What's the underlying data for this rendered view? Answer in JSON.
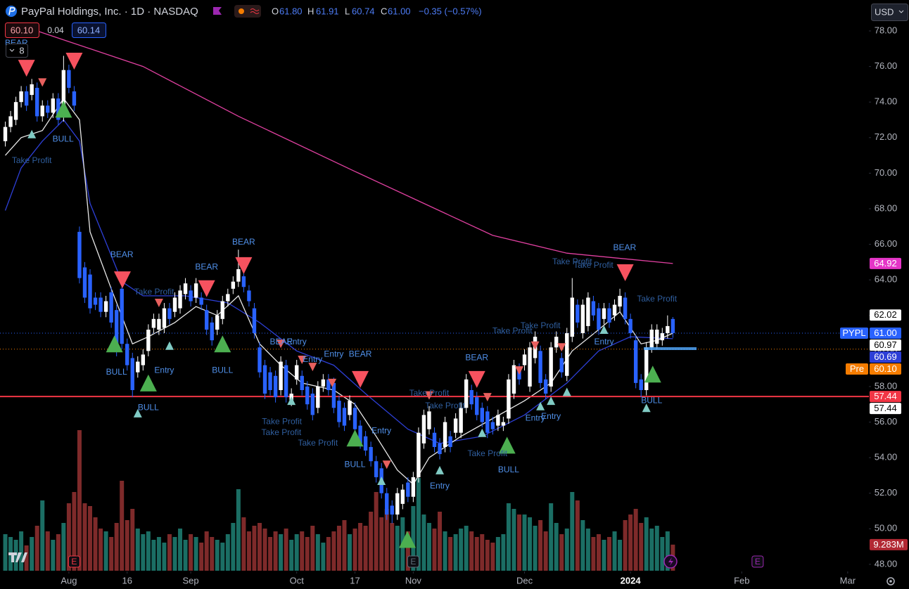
{
  "header": {
    "title": "PayPal Holdings, Inc. · 1D · NASDAQ",
    "ohlc": [
      {
        "key": "O",
        "value": "61.80"
      },
      {
        "key": "H",
        "value": "61.91"
      },
      {
        "key": "L",
        "value": "60.74"
      },
      {
        "key": "C",
        "value": "61.00"
      }
    ],
    "change": "−0.35 (−0.57%)",
    "bid": "60.10",
    "spread": "0.04",
    "ask": "60.14",
    "indicators": "8",
    "currency": "USD"
  },
  "chart_data": {
    "type": "candlestick",
    "xlim": [
      -1,
      163
    ],
    "ylim": [
      47.64,
      79.74
    ],
    "xticks": [
      {
        "value": 12,
        "label": "Aug"
      },
      {
        "value": 23,
        "label": "16"
      },
      {
        "value": 35,
        "label": "Sep"
      },
      {
        "value": 55,
        "label": "Oct"
      },
      {
        "value": 66,
        "label": "17"
      },
      {
        "value": 77,
        "label": "Nov"
      },
      {
        "value": 98,
        "label": "Dec"
      },
      {
        "value": 118,
        "label": "2024",
        "bold": true
      },
      {
        "value": 139,
        "label": "Feb"
      },
      {
        "value": 159,
        "label": "Mar"
      }
    ],
    "yticks": [
      {
        "value": 48,
        "label": "48.00"
      },
      {
        "value": 50,
        "label": "50.00"
      },
      {
        "value": 52,
        "label": "52.00"
      },
      {
        "value": 54,
        "label": "54.00"
      },
      {
        "value": 56,
        "label": "56.00"
      },
      {
        "value": 58,
        "label": "58.00"
      },
      {
        "value": 60,
        "label": "60.00"
      },
      {
        "value": 62,
        "label": "62.00"
      },
      {
        "value": 64,
        "label": "64.00"
      },
      {
        "value": 66,
        "label": "66.00"
      },
      {
        "value": 68,
        "label": "68.00"
      },
      {
        "value": 70,
        "label": "70.00"
      },
      {
        "value": 72,
        "label": "72.00"
      },
      {
        "value": 74,
        "label": "74.00"
      },
      {
        "value": 76,
        "label": "76.00"
      },
      {
        "value": 78,
        "label": "78.00"
      }
    ],
    "up_color": "#ffffff",
    "down_color": "#2962ff",
    "volume_up_color": "#1e7a6f",
    "volume_down_color": "#8c2f2f",
    "open": [
      71.8,
      72.6,
      73.0,
      74.0,
      74.6,
      74.4,
      74.8,
      73.2,
      73.8,
      73.4,
      74.2,
      73.2,
      75.8,
      74.6,
      66.7,
      64.7,
      64.3,
      63.0,
      63.0,
      62.2,
      63.3,
      62.3,
      63.5,
      60.4,
      59.6,
      58.8,
      59.2,
      60.0,
      61.3,
      61.2,
      61.3,
      62.4,
      62.2,
      62.4,
      63.2,
      63.4,
      63.0,
      63.0,
      62.3,
      61.6,
      61.2,
      61.8,
      62.8,
      63.5,
      63.9,
      64.2,
      63.4,
      62.4,
      60.2,
      59.2,
      58.8,
      58.6,
      57.8,
      59.2,
      57.2,
      58.4,
      58.6,
      58.0,
      57.6,
      56.8,
      58.0,
      58.4,
      58.2,
      57.2,
      56.8,
      56.4,
      56.8,
      55.8,
      55.2,
      54.6,
      53.8,
      53.4,
      52.0,
      51.3,
      50.8,
      51.4,
      52.6,
      51.8,
      52.9,
      54.8,
      55.6,
      55.4,
      54.8,
      54.6,
      55.2,
      55.4,
      55.4,
      56.8,
      57.8,
      57.4,
      56.8,
      56.6,
      56.0,
      55.8,
      55.8,
      56.2,
      57.6,
      59.0,
      59.2,
      58.0,
      59.6,
      60.0,
      58.4,
      58.0,
      60.2,
      59.6,
      58.6,
      60.8,
      62.6,
      61.0,
      61.4,
      62.8,
      62.4,
      61.8,
      62.4,
      62.0,
      62.5,
      63.0,
      61.8,
      60.6,
      58.4,
      57.8,
      60.2,
      60.4,
      60.6,
      61.0,
      61.8
    ],
    "high": [
      72.9,
      73.5,
      74.3,
      74.9,
      74.9,
      75.3,
      75.1,
      74.1,
      74.1,
      74.5,
      74.5,
      76.6,
      76.1,
      74.9,
      67.0,
      65.0,
      64.6,
      63.3,
      63.3,
      63.1,
      63.6,
      62.6,
      63.8,
      60.7,
      59.9,
      59.7,
      60.1,
      61.5,
      62.1,
      62.1,
      62.7,
      62.7,
      63.3,
      63.7,
      64.1,
      63.7,
      64.1,
      63.3,
      62.6,
      61.9,
      62.3,
      63.1,
      63.5,
      64.2,
      65.7,
      64.5,
      63.7,
      62.7,
      60.5,
      59.5,
      59.1,
      58.9,
      59.7,
      59.5,
      57.9,
      59.5,
      58.9,
      58.3,
      57.9,
      58.3,
      58.7,
      58.7,
      58.5,
      57.5,
      57.1,
      57.5,
      57.1,
      56.1,
      55.5,
      54.9,
      54.1,
      53.7,
      52.3,
      51.6,
      52.3,
      52.5,
      52.9,
      53.2,
      55.7,
      56.7,
      56.9,
      55.7,
      55.1,
      56.3,
      55.5,
      56.5,
      57.1,
      58.7,
      58.1,
      57.7,
      57.1,
      56.9,
      56.3,
      56.7,
      56.3,
      58.7,
      59.5,
      59.3,
      60.1,
      60.5,
      61.1,
      60.3,
      58.7,
      60.5,
      61.1,
      59.9,
      61.3,
      64.1,
      62.9,
      62.9,
      63.3,
      63.1,
      62.7,
      62.7,
      62.7,
      62.9,
      63.5,
      63.3,
      62.1,
      60.9,
      58.7,
      60.5,
      61.5,
      61.5,
      61.3,
      62.0,
      61.91
    ],
    "low": [
      71.5,
      72.3,
      72.7,
      73.7,
      73.5,
      74.1,
      72.9,
      72.9,
      73.1,
      73.1,
      72.7,
      72.9,
      74.5,
      73.5,
      63.8,
      62.7,
      62.1,
      62.3,
      61.9,
      61.9,
      61.3,
      59.7,
      60.1,
      58.9,
      57.4,
      58.5,
      58.9,
      59.7,
      61.0,
      60.9,
      61.0,
      61.5,
      61.9,
      62.1,
      62.9,
      62.5,
      62.7,
      62.3,
      60.9,
      60.3,
      60.9,
      61.5,
      62.5,
      63.2,
      63.6,
      63.3,
      62.5,
      60.7,
      58.5,
      57.3,
      57.5,
      57.1,
      57.5,
      57.1,
      56.9,
      58.1,
      57.5,
      56.7,
      56.1,
      56.5,
      57.7,
      57.5,
      56.5,
      55.7,
      55.5,
      56.1,
      55.3,
      54.5,
      54.1,
      53.5,
      52.6,
      51.7,
      50.5,
      50.3,
      50.5,
      51.1,
      51.5,
      51.5,
      52.6,
      54.5,
      55.3,
      54.3,
      53.9,
      54.3,
      54.3,
      55.1,
      55.1,
      56.5,
      56.7,
      56.1,
      55.7,
      55.1,
      55.3,
      55.5,
      55.5,
      55.9,
      57.3,
      58.1,
      58.9,
      57.7,
      59.3,
      57.9,
      57.3,
      57.7,
      59.9,
      58.5,
      58.3,
      60.5,
      61.3,
      60.7,
      61.1,
      61.7,
      60.9,
      61.5,
      61.3,
      61.7,
      62.2,
      61.5,
      60.7,
      57.9,
      57.4,
      57.5,
      59.9,
      60.1,
      60.3,
      60.7,
      60.74
    ],
    "close": [
      72.6,
      73.2,
      74.0,
      74.6,
      73.8,
      75.0,
      73.2,
      73.8,
      73.4,
      74.2,
      73.0,
      75.8,
      74.8,
      73.8,
      64.1,
      63.0,
      62.4,
      62.6,
      62.2,
      62.8,
      61.6,
      60.0,
      60.4,
      59.2,
      57.8,
      59.4,
      59.8,
      61.2,
      61.8,
      61.8,
      62.4,
      61.8,
      63.0,
      63.4,
      63.8,
      62.8,
      63.8,
      62.6,
      61.2,
      60.6,
      62.0,
      62.8,
      63.2,
      63.9,
      64.6,
      63.6,
      62.8,
      61.0,
      58.8,
      57.6,
      57.8,
      57.4,
      59.4,
      57.4,
      57.6,
      59.2,
      57.8,
      57.0,
      56.4,
      58.0,
      58.4,
      57.8,
      56.8,
      56.0,
      55.8,
      57.2,
      55.6,
      54.8,
      54.4,
      53.8,
      52.9,
      52.0,
      50.8,
      50.8,
      52.0,
      52.2,
      51.8,
      52.9,
      55.4,
      56.4,
      56.6,
      54.6,
      54.2,
      56.0,
      54.6,
      56.2,
      56.8,
      58.4,
      57.0,
      56.4,
      56.0,
      55.4,
      55.6,
      56.4,
      56.0,
      58.4,
      59.2,
      58.4,
      59.8,
      60.2,
      60.8,
      58.2,
      57.6,
      60.2,
      60.8,
      58.8,
      61.0,
      63.0,
      61.6,
      62.6,
      63.0,
      62.0,
      61.2,
      62.4,
      61.6,
      62.6,
      63.1,
      61.8,
      61.0,
      58.2,
      57.8,
      60.2,
      61.2,
      61.2,
      61.0,
      61.4,
      61.0
    ],
    "volume": [
      13,
      12,
      11,
      14,
      9,
      12,
      16,
      25,
      14,
      11,
      13,
      17,
      24,
      28,
      50,
      24,
      23,
      19,
      15,
      14,
      12,
      17,
      32,
      18,
      22,
      15,
      13,
      14,
      11,
      12,
      10,
      13,
      12,
      15,
      11,
      13,
      12,
      10,
      14,
      12,
      11,
      10,
      13,
      17,
      29,
      19,
      14,
      16,
      17,
      15,
      12,
      14,
      13,
      15,
      11,
      13,
      14,
      12,
      16,
      13,
      10,
      12,
      14,
      16,
      18,
      13,
      15,
      17,
      16,
      21,
      28,
      19,
      22,
      17,
      16,
      19,
      14,
      23,
      33,
      20,
      17,
      15,
      21,
      14,
      12,
      13,
      15,
      16,
      14,
      12,
      13,
      11,
      10,
      12,
      13,
      24,
      22,
      20,
      20,
      19,
      16,
      18,
      14,
      24,
      17,
      13,
      15,
      28,
      25,
      18,
      15,
      12,
      13,
      11,
      12,
      14,
      11,
      18,
      20,
      22,
      17,
      19,
      15,
      16,
      12,
      14,
      9.283
    ],
    "volume_label": {
      "value": 9.283,
      "label": "9.283M",
      "color": "#b22833"
    },
    "lines": [
      {
        "color": "#e040a0",
        "x": [
          6,
          12,
          26,
          44,
          66,
          79,
          92,
          106,
          126
        ],
        "values": [
          78.0,
          77.4,
          76.0,
          73.2,
          70.1,
          68.3,
          66.5,
          65.5,
          64.92
        ]
      },
      {
        "color": "#2d3fd6",
        "x": [
          0,
          3,
          7,
          11,
          14,
          16,
          22,
          26,
          34,
          42,
          48,
          55,
          62,
          68,
          76,
          82,
          90,
          98,
          106,
          112,
          118,
          126
        ],
        "values": [
          67.9,
          70.3,
          71.8,
          73.0,
          71.8,
          68.3,
          63.9,
          63.1,
          63.1,
          62.7,
          61.6,
          60.0,
          59.2,
          57.6,
          55.6,
          54.8,
          55.2,
          56.4,
          58.2,
          60.0,
          60.8,
          60.69
        ]
      },
      {
        "color": "#e8e8e8",
        "x": [
          0,
          3,
          7,
          11,
          14,
          16,
          20,
          24,
          27,
          32,
          36,
          40,
          44,
          48,
          52,
          56,
          62,
          66,
          70,
          74,
          77,
          80,
          86,
          92,
          98,
          103,
          107,
          112,
          116,
          120,
          123,
          126
        ],
        "values": [
          71.0,
          72.0,
          72.4,
          74.2,
          73.0,
          66.7,
          63.5,
          60.4,
          60.8,
          61.6,
          62.5,
          62.0,
          63.1,
          60.4,
          59.2,
          58.2,
          57.8,
          57.0,
          55.2,
          53.3,
          52.5,
          54.0,
          55.2,
          56.2,
          57.2,
          58.2,
          60.0,
          61.2,
          62.2,
          60.4,
          60.6,
          61.0
        ]
      }
    ],
    "price_lines": [
      {
        "value": 57.44,
        "color": "#f23645",
        "style": "solid"
      },
      {
        "value": 61.0,
        "color": "#2962ff",
        "style": "dotted"
      },
      {
        "value": 60.1,
        "color": "#f57c00",
        "style": "dotted"
      }
    ],
    "price_labels": [
      {
        "value": 64.92,
        "label": "64.92",
        "bg": "#e535c7",
        "fg": "#ffffff"
      },
      {
        "value": 62.02,
        "label": "62.02",
        "bg": "#ffffff",
        "fg": "#000000"
      },
      {
        "value": 61.0,
        "label": "61.00",
        "prefix": "PYPL",
        "bg": "#2962ff",
        "fg": "#ffffff"
      },
      {
        "value": 60.97,
        "label": "60.97",
        "bg": "#ffffff",
        "fg": "#000000"
      },
      {
        "value": 60.69,
        "label": "60.69",
        "bg": "#2d3fd6",
        "fg": "#ffffff"
      },
      {
        "value": 60.1,
        "label": "60.10",
        "prefix": "Pre",
        "bg": "#f57c00",
        "fg": "#ffffff"
      },
      {
        "value": 57.44,
        "label": "57.44",
        "bg": "#f23645",
        "fg": "#ffffff"
      },
      {
        "value": 57.44,
        "label": "57.44",
        "bg": "#ffffff",
        "fg": "#000000"
      }
    ],
    "markers": [
      {
        "color": "#f7525f",
        "direction": "down",
        "points": [
          [
            4,
            75.9
          ],
          [
            13,
            76.3
          ],
          [
            22.1,
            64.0
          ],
          [
            38,
            63.5
          ],
          [
            45,
            64.8
          ],
          [
            67,
            58.4
          ],
          [
            89,
            58.4
          ],
          [
            117,
            64.4
          ]
        ]
      },
      {
        "color": "#4caf50",
        "direction": "up",
        "points": [
          [
            11,
            73.6
          ],
          [
            20.6,
            60.4
          ],
          [
            27,
            58.2
          ],
          [
            41,
            60.4
          ],
          [
            66,
            55.1
          ],
          [
            94.7,
            54.7
          ],
          [
            122.2,
            58.7
          ],
          [
            75.9,
            49.4
          ]
        ]
      },
      {
        "color": "#e8605e",
        "direction": "down",
        "points": [
          [
            7,
            75.1
          ],
          [
            29,
            62.7
          ],
          [
            52,
            60.4
          ],
          [
            56,
            59.5
          ],
          [
            72,
            53.6
          ],
          [
            80,
            57.5
          ],
          [
            91,
            57.4
          ],
          [
            97,
            58.9
          ],
          [
            100,
            60.3
          ],
          [
            105,
            60.2
          ],
          [
            58,
            59.1
          ],
          [
            61.7,
            58.2
          ]
        ]
      },
      {
        "color": "#80cbc4",
        "direction": "up",
        "points": [
          [
            5,
            72.2
          ],
          [
            25,
            56.5
          ],
          [
            31,
            60.3
          ],
          [
            54,
            57.2
          ],
          [
            71,
            52.7
          ],
          [
            82,
            53.3
          ],
          [
            90,
            55.4
          ],
          [
            101,
            56.9
          ],
          [
            103,
            57.2
          ],
          [
            113,
            61.2
          ],
          [
            121,
            56.8
          ],
          [
            106,
            57.7
          ]
        ]
      }
    ],
    "annotations": [
      {
        "text": "BEAR",
        "color": "#4f8fe8",
        "points": [
          [
            2.1,
            77.3
          ],
          [
            22,
            65.4
          ],
          [
            38,
            64.7
          ],
          [
            45,
            66.1
          ],
          [
            52.1,
            60.5
          ],
          [
            67,
            59.8
          ],
          [
            89,
            59.6
          ],
          [
            116.9,
            65.8
          ]
        ]
      },
      {
        "text": "BULL",
        "color": "#4f8fe8",
        "points": [
          [
            10.9,
            71.9
          ],
          [
            21,
            58.8
          ],
          [
            27,
            56.8
          ],
          [
            41,
            58.9
          ],
          [
            66,
            53.6
          ],
          [
            95,
            53.3
          ],
          [
            122,
            57.2
          ]
        ]
      },
      {
        "text": "Take Profit",
        "color": "#2f5e9e",
        "points": [
          [
            5,
            70.7
          ],
          [
            28.1,
            63.3
          ],
          [
            52.2,
            56.0
          ],
          [
            52.1,
            55.4
          ],
          [
            59,
            54.8
          ],
          [
            80,
            57.6
          ],
          [
            83,
            56.9
          ],
          [
            91,
            54.2
          ],
          [
            95.7,
            61.1
          ],
          [
            101,
            61.4
          ],
          [
            107,
            65.0
          ],
          [
            111,
            64.8
          ],
          [
            123,
            62.9
          ]
        ]
      },
      {
        "text": "Entry",
        "color": "#4f8fe8",
        "points": [
          [
            30,
            58.9
          ],
          [
            55,
            60.5
          ],
          [
            58,
            59.5
          ],
          [
            62,
            59.8
          ],
          [
            71,
            55.5
          ],
          [
            82,
            52.4
          ],
          [
            100,
            56.2
          ],
          [
            103,
            56.3
          ],
          [
            113,
            60.5
          ]
        ]
      }
    ],
    "events": [
      {
        "x": 13,
        "label": "E",
        "color": "#f23645"
      },
      {
        "x": 77,
        "label": "E",
        "color": "#5d6b78"
      },
      {
        "x": 142,
        "label": "E",
        "color": "#9c27b0"
      }
    ]
  }
}
